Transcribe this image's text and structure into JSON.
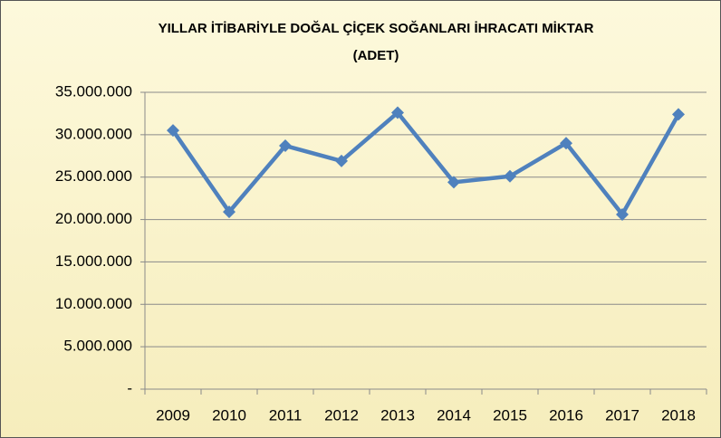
{
  "chart_data": {
    "type": "line",
    "title": [
      "YILLAR İTİBARİYLE DOĞAL ÇİÇEK SOĞANLARI İHRACATI    MİKTAR",
      "(ADET)"
    ],
    "categories": [
      "2009",
      "2010",
      "2011",
      "2012",
      "2013",
      "2014",
      "2015",
      "2016",
      "2017",
      "2018"
    ],
    "series": [
      {
        "color": "#4f81bd",
        "values": [
          30500000,
          20900000,
          28700000,
          26900000,
          32600000,
          24400000,
          25100000,
          29000000,
          20600000,
          32400000
        ]
      }
    ],
    "ylim": [
      0,
      35000000
    ],
    "yticks": [
      {
        "value": 0,
        "label": "-"
      },
      {
        "value": 5000000,
        "label": "5.000.000"
      },
      {
        "value": 10000000,
        "label": "10.000.000"
      },
      {
        "value": 15000000,
        "label": "15.000.000"
      },
      {
        "value": 20000000,
        "label": "20.000.000"
      },
      {
        "value": 25000000,
        "label": "25.000.000"
      },
      {
        "value": 30000000,
        "label": "30.000.000"
      },
      {
        "value": 35000000,
        "label": "35.000.000"
      }
    ],
    "grid": true
  }
}
